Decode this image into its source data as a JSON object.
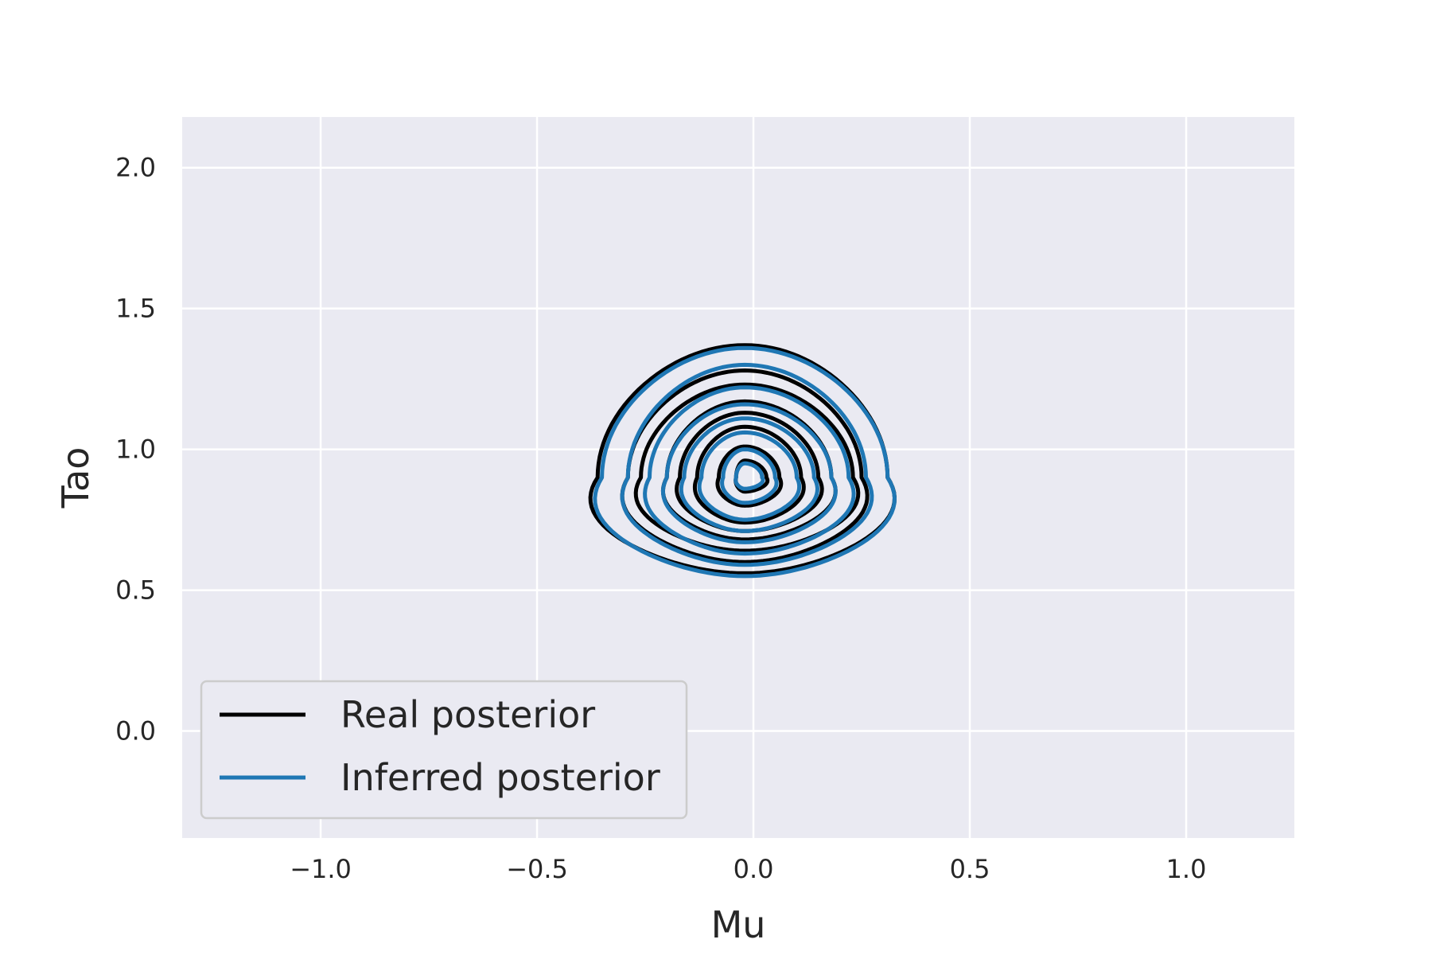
{
  "chart_data": {
    "type": "contour",
    "title": "",
    "xlabel": "Mu",
    "ylabel": "Tao",
    "xlim": [
      -1.32,
      1.25
    ],
    "ylim": [
      -0.38,
      2.18
    ],
    "xticks": [
      -1.0,
      -0.5,
      0.0,
      0.5,
      1.0
    ],
    "xtick_labels": [
      "−1.0",
      "−0.5",
      "0.0",
      "0.5",
      "1.0"
    ],
    "yticks": [
      0.0,
      0.5,
      1.0,
      1.5,
      2.0
    ],
    "ytick_labels": [
      "0.0",
      "0.5",
      "1.0",
      "1.5",
      "2.0"
    ],
    "grid": true,
    "background": "#eaeaf2",
    "legend_position": "lower-left",
    "series": [
      {
        "name": "Real posterior",
        "color": "#000000",
        "center": [
          -0.02,
          0.9
        ],
        "levels": [
          {
            "x": [
              -0.36,
              0.31
            ],
            "y": [
              0.56,
              1.37
            ]
          },
          {
            "x": [
              -0.29,
              0.25
            ],
            "y": [
              0.6,
              1.28
            ]
          },
          {
            "x": [
              -0.26,
              0.23
            ],
            "y": [
              0.64,
              1.23
            ]
          },
          {
            "x": [
              -0.2,
              0.18
            ],
            "y": [
              0.68,
              1.17
            ]
          },
          {
            "x": [
              -0.17,
              0.15
            ],
            "y": [
              0.71,
              1.13
            ]
          },
          {
            "x": [
              -0.13,
              0.11
            ],
            "y": [
              0.74,
              1.08
            ]
          },
          {
            "x": [
              -0.08,
              0.06
            ],
            "y": [
              0.8,
              1.01
            ]
          },
          {
            "x": [
              -0.04,
              0.03
            ],
            "y": [
              0.85,
              0.96
            ]
          }
        ]
      },
      {
        "name": "Inferred posterior",
        "color": "#1f77b4",
        "center": [
          -0.02,
          0.9
        ],
        "levels": [
          {
            "x": [
              -0.35,
              0.31
            ],
            "y": [
              0.55,
              1.36
            ]
          },
          {
            "x": [
              -0.29,
              0.26
            ],
            "y": [
              0.59,
              1.3
            ]
          },
          {
            "x": [
              -0.24,
              0.22
            ],
            "y": [
              0.63,
              1.22
            ]
          },
          {
            "x": [
              -0.2,
              0.18
            ],
            "y": [
              0.67,
              1.16
            ]
          },
          {
            "x": [
              -0.16,
              0.14
            ],
            "y": [
              0.71,
              1.11
            ]
          },
          {
            "x": [
              -0.12,
              0.1
            ],
            "y": [
              0.75,
              1.06
            ]
          },
          {
            "x": [
              -0.07,
              0.05
            ],
            "y": [
              0.81,
              1.0
            ]
          },
          {
            "x": [
              -0.04,
              0.02
            ],
            "y": [
              0.86,
              0.95
            ]
          }
        ]
      }
    ]
  }
}
